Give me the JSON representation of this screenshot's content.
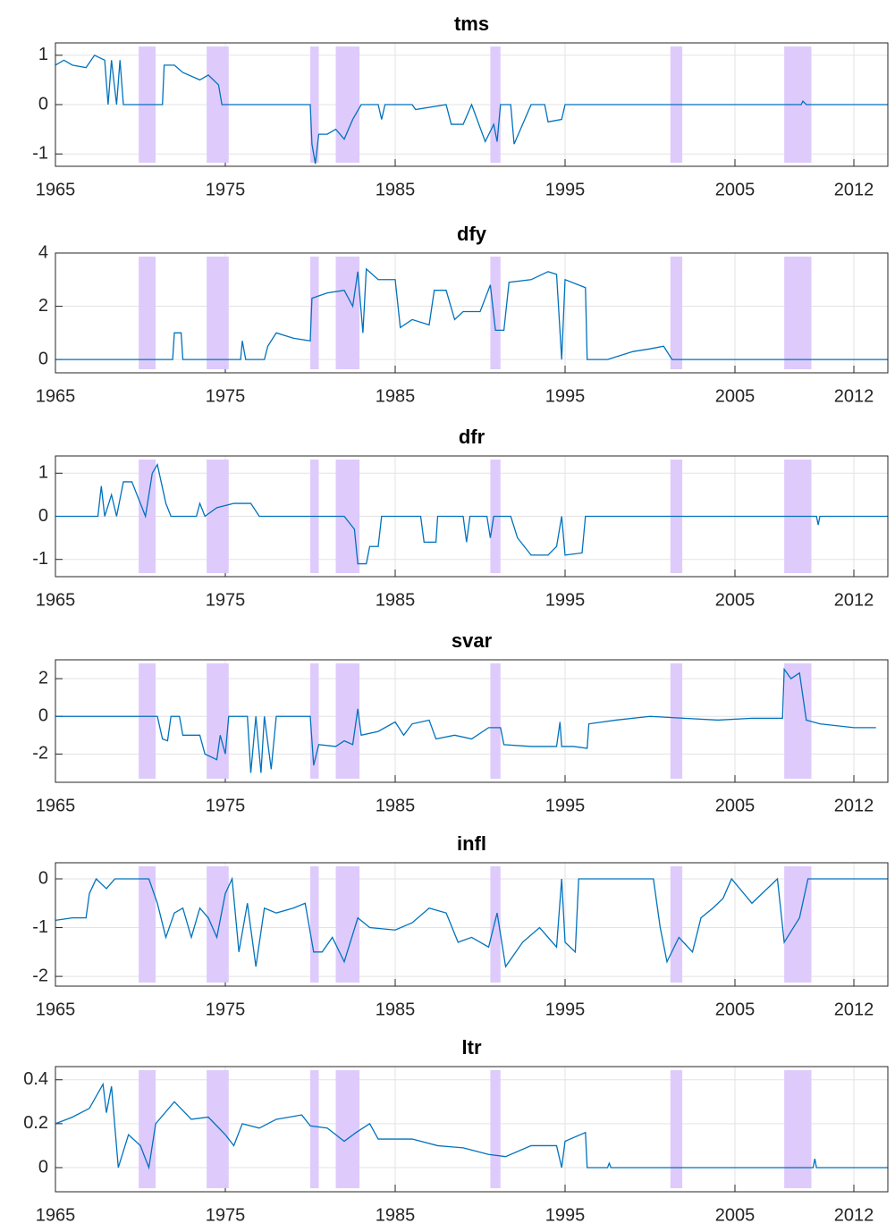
{
  "chart_data": [
    {
      "type": "line",
      "title": "tms",
      "color": "#0072bd",
      "shade_color": "#dcc8fc",
      "grid": true,
      "xlim": [
        1965,
        2014
      ],
      "xticks": [
        1965,
        1975,
        1985,
        1995,
        2005,
        2012
      ],
      "ylim": [
        -1.25,
        1.25
      ],
      "yticks": [
        -1,
        0,
        1
      ],
      "shaded_regions": [
        [
          1969.9,
          1970.9
        ],
        [
          1973.9,
          1975.2
        ],
        [
          1980.0,
          1980.5
        ],
        [
          1981.5,
          1982.9
        ],
        [
          1990.6,
          1991.2
        ],
        [
          2001.2,
          2001.9
        ],
        [
          2007.9,
          2009.5
        ]
      ],
      "x": [
        1965,
        1965.5,
        1966,
        1966.8,
        1967.3,
        1967.9,
        1968.1,
        1968.3,
        1968.6,
        1968.8,
        1969,
        1969.4,
        1971.3,
        1971.4,
        1972,
        1972.5,
        1973.5,
        1974,
        1974.6,
        1974.8,
        1980.0,
        1980.1,
        1980.3,
        1980.5,
        1981,
        1981.5,
        1982,
        1982.5,
        1983,
        1984,
        1984.2,
        1984.4,
        1986,
        1986.2,
        1988,
        1988.3,
        1989,
        1989.5,
        1990.3,
        1990.8,
        1991,
        1991.2,
        1991.8,
        1992,
        1992.5,
        1993,
        1993.8,
        1994,
        1994.8,
        1995,
        2008.9,
        2009,
        2009.2,
        2014
      ],
      "values": [
        0.8,
        0.9,
        0.8,
        0.75,
        1.0,
        0.9,
        0,
        0.9,
        0,
        0.9,
        0,
        0,
        0,
        0.8,
        0.8,
        0.65,
        0.5,
        0.6,
        0.4,
        0,
        0,
        -0.8,
        -1.2,
        -0.6,
        -0.6,
        -0.5,
        -0.7,
        -0.3,
        0,
        0,
        -0.3,
        0,
        0,
        -0.1,
        0,
        -0.4,
        -0.4,
        0,
        -0.75,
        -0.4,
        -0.75,
        0,
        0,
        -0.8,
        -0.4,
        0,
        0,
        -0.35,
        -0.3,
        0,
        0,
        0.07,
        0,
        0
      ]
    },
    {
      "type": "line",
      "title": "dfy",
      "color": "#0072bd",
      "shade_color": "#dcc8fc",
      "grid": true,
      "xlim": [
        1965,
        2014
      ],
      "xticks": [
        1965,
        1975,
        1985,
        1995,
        2005,
        2012
      ],
      "ylim": [
        -0.5,
        4
      ],
      "yticks": [
        0,
        2,
        4
      ],
      "shaded_regions": [
        [
          1969.9,
          1970.9
        ],
        [
          1973.9,
          1975.2
        ],
        [
          1980.0,
          1980.5
        ],
        [
          1981.5,
          1982.9
        ],
        [
          1990.6,
          1991.2
        ],
        [
          2001.2,
          2001.9
        ],
        [
          2007.9,
          2009.5
        ]
      ],
      "x": [
        1965,
        1971.9,
        1972,
        1972.4,
        1972.5,
        1975.9,
        1976,
        1976.2,
        1977.3,
        1977.5,
        1978,
        1979,
        1980,
        1980.1,
        1981,
        1982,
        1982.5,
        1982.8,
        1983.1,
        1983.3,
        1984,
        1985,
        1985.3,
        1986,
        1987,
        1987.3,
        1988,
        1988.5,
        1989,
        1990,
        1990.6,
        1990.9,
        1991.4,
        1991.7,
        1993,
        1994,
        1994.5,
        1994.8,
        1995,
        1996.2,
        1996.3,
        1997.5,
        1998,
        1999,
        2000,
        2000.8,
        2001.3,
        2014
      ],
      "values": [
        0,
        0,
        1,
        1,
        0,
        0,
        0.7,
        0,
        0,
        0.5,
        1,
        0.8,
        0.7,
        2.3,
        2.5,
        2.6,
        2.0,
        3.3,
        1.0,
        3.4,
        3.0,
        3.0,
        1.2,
        1.5,
        1.3,
        2.6,
        2.6,
        1.5,
        1.8,
        1.8,
        2.8,
        1.1,
        1.1,
        2.9,
        3.0,
        3.3,
        3.2,
        0,
        3.0,
        2.7,
        0,
        0,
        0.1,
        0.3,
        0.4,
        0.5,
        0,
        0
      ]
    },
    {
      "type": "line",
      "title": "dfr",
      "color": "#0072bd",
      "shade_color": "#dcc8fc",
      "grid": true,
      "xlim": [
        1965,
        2014
      ],
      "xticks": [
        1965,
        1975,
        1985,
        1995,
        2005,
        2012
      ],
      "ylim": [
        -1.4,
        1.4
      ],
      "yticks": [
        -1,
        0,
        1
      ],
      "shaded_regions": [
        [
          1969.9,
          1970.9
        ],
        [
          1973.9,
          1975.2
        ],
        [
          1980.0,
          1980.5
        ],
        [
          1981.5,
          1982.9
        ],
        [
          1990.6,
          1991.2
        ],
        [
          2001.2,
          2001.9
        ],
        [
          2007.9,
          2009.5
        ]
      ],
      "x": [
        1965,
        1967.5,
        1967.7,
        1967.9,
        1968.3,
        1968.6,
        1969,
        1969.5,
        1970,
        1970.3,
        1970.7,
        1971,
        1971.5,
        1971.8,
        1973.3,
        1973.5,
        1973.8,
        1974.5,
        1975.5,
        1976.5,
        1977,
        1982,
        1982.6,
        1982.8,
        1983.3,
        1983.5,
        1984,
        1984.2,
        1986.5,
        1986.7,
        1987.4,
        1987.5,
        1989,
        1989.2,
        1989.4,
        1990.4,
        1990.6,
        1990.8,
        1991.8,
        1992.2,
        1993,
        1994,
        1994.5,
        1994.8,
        1995,
        1996,
        1996.2,
        2009.8,
        2009.9,
        2010,
        2014
      ],
      "values": [
        0,
        0,
        0.7,
        0,
        0.5,
        0,
        0.8,
        0.8,
        0.3,
        0,
        1.0,
        1.2,
        0.3,
        0,
        0,
        0.3,
        0,
        0.2,
        0.3,
        0.3,
        0,
        0,
        -0.3,
        -1.1,
        -1.1,
        -0.7,
        -0.7,
        0,
        0,
        -0.6,
        -0.6,
        0,
        0,
        -0.6,
        0,
        0,
        -0.5,
        0,
        0,
        -0.5,
        -0.9,
        -0.9,
        -0.7,
        0,
        -0.9,
        -0.85,
        0,
        0,
        -0.2,
        0,
        0
      ]
    },
    {
      "type": "line",
      "title": "svar",
      "color": "#0072bd",
      "shade_color": "#dcc8fc",
      "grid": true,
      "xlim": [
        1965,
        2014
      ],
      "xticks": [
        1965,
        1975,
        1985,
        1995,
        2005,
        2012
      ],
      "ylim": [
        -3.5,
        3
      ],
      "yticks": [
        -2,
        0,
        2
      ],
      "shaded_regions": [
        [
          1969.9,
          1970.9
        ],
        [
          1973.9,
          1975.2
        ],
        [
          1980.0,
          1980.5
        ],
        [
          1981.5,
          1982.9
        ],
        [
          1990.6,
          1991.2
        ],
        [
          2001.2,
          2001.9
        ],
        [
          2007.9,
          2009.5
        ]
      ],
      "x": [
        1965,
        1971,
        1971.3,
        1971.6,
        1971.8,
        1972.3,
        1972.5,
        1973.5,
        1973.8,
        1974.5,
        1974.7,
        1975,
        1975.2,
        1976.3,
        1976.5,
        1976.8,
        1977.1,
        1977.3,
        1977.7,
        1978,
        1980,
        1980.2,
        1980.5,
        1981.5,
        1982,
        1982.5,
        1982.8,
        1983,
        1984,
        1985,
        1985.5,
        1986,
        1987,
        1987.4,
        1988.5,
        1989.5,
        1990.5,
        1991.2,
        1991.4,
        1993,
        1994.5,
        1994.7,
        1994.8,
        1995.5,
        1996.3,
        1996.4,
        1998,
        2000,
        2002,
        2004,
        2006,
        2007.8,
        2007.9,
        2008.3,
        2008.8,
        2009.2,
        2010,
        2012,
        2013.3
      ],
      "values": [
        0,
        0,
        -1.2,
        -1.3,
        0,
        0,
        -1.0,
        -1.0,
        -2.0,
        -2.3,
        -1.0,
        -2.0,
        0,
        0,
        -3.0,
        0,
        -3.0,
        0,
        -2.8,
        0,
        0,
        -2.6,
        -1.5,
        -1.6,
        -1.3,
        -1.5,
        0.4,
        -1.0,
        -0.8,
        -0.3,
        -1.0,
        -0.4,
        -0.2,
        -1.2,
        -1.0,
        -1.2,
        -0.6,
        -0.6,
        -1.5,
        -1.6,
        -1.6,
        -0.3,
        -1.6,
        -1.6,
        -1.7,
        -0.4,
        -0.2,
        0,
        -0.1,
        -0.2,
        -0.1,
        -0.1,
        2.5,
        2.0,
        2.3,
        -0.2,
        -0.4,
        -0.6,
        -0.6
      ]
    },
    {
      "type": "line",
      "title": "infl",
      "color": "#0072bd",
      "shade_color": "#dcc8fc",
      "grid": true,
      "xlim": [
        1965,
        2014
      ],
      "xticks": [
        1965,
        1975,
        1985,
        1995,
        2005,
        2012
      ],
      "ylim": [
        -2.2,
        0.33
      ],
      "yticks": [
        -2,
        -1,
        0
      ],
      "shaded_regions": [
        [
          1969.9,
          1970.9
        ],
        [
          1973.9,
          1975.2
        ],
        [
          1980.0,
          1980.5
        ],
        [
          1981.5,
          1982.9
        ],
        [
          1990.6,
          1991.2
        ],
        [
          2001.2,
          2001.9
        ],
        [
          2007.9,
          2009.5
        ]
      ],
      "x": [
        1965,
        1966,
        1966.8,
        1967,
        1967.4,
        1968,
        1968.5,
        1970.5,
        1971,
        1971.5,
        1972,
        1972.5,
        1973,
        1973.5,
        1974,
        1974.5,
        1975,
        1975.4,
        1975.8,
        1976.3,
        1976.8,
        1977.3,
        1978,
        1979,
        1979.7,
        1980.2,
        1980.7,
        1981.3,
        1982,
        1982.8,
        1983.5,
        1985,
        1986,
        1987,
        1988,
        1988.7,
        1989.5,
        1990.5,
        1991,
        1991.5,
        1992.5,
        1993.5,
        1994.5,
        1994.8,
        1995,
        1995.6,
        1995.8,
        2000.2,
        2000.6,
        2001,
        2001.7,
        2002.5,
        2003,
        2003.7,
        2004.3,
        2004.8,
        2006,
        2007.5,
        2007.9,
        2008.8,
        2009.3,
        2014
      ],
      "values": [
        -0.85,
        -0.8,
        -0.8,
        -0.3,
        0,
        -0.2,
        0,
        0,
        -0.5,
        -1.2,
        -0.7,
        -0.6,
        -1.2,
        -0.6,
        -0.8,
        -1.2,
        -0.3,
        0,
        -1.5,
        -0.5,
        -1.8,
        -0.6,
        -0.7,
        -0.6,
        -0.5,
        -1.5,
        -1.5,
        -1.2,
        -1.7,
        -0.8,
        -1.0,
        -1.05,
        -0.9,
        -0.6,
        -0.7,
        -1.3,
        -1.2,
        -1.4,
        -0.7,
        -1.8,
        -1.3,
        -1.0,
        -1.4,
        0,
        -1.3,
        -1.5,
        0,
        0,
        -1.0,
        -1.7,
        -1.2,
        -1.5,
        -0.8,
        -0.6,
        -0.4,
        0,
        -0.5,
        0,
        -1.3,
        -0.8,
        0,
        0
      ]
    },
    {
      "type": "line",
      "title": "ltr",
      "color": "#0072bd",
      "shade_color": "#dcc8fc",
      "grid": true,
      "xlim": [
        1965,
        2014
      ],
      "xticks": [
        1965,
        1975,
        1985,
        1995,
        2005,
        2012
      ],
      "ylim": [
        -0.11,
        0.46
      ],
      "yticks": [
        0,
        0.2,
        0.4
      ],
      "shaded_regions": [
        [
          1969.9,
          1970.9
        ],
        [
          1973.9,
          1975.2
        ],
        [
          1980.0,
          1980.5
        ],
        [
          1981.5,
          1982.9
        ],
        [
          1990.6,
          1991.2
        ],
        [
          2001.2,
          2001.9
        ],
        [
          2007.9,
          2009.5
        ]
      ],
      "x": [
        1965,
        1966,
        1967,
        1967.8,
        1968,
        1968.3,
        1968.7,
        1969.3,
        1970,
        1970.5,
        1970.9,
        1972,
        1973,
        1974,
        1975,
        1975.5,
        1976,
        1977,
        1978,
        1979.5,
        1980,
        1981,
        1982,
        1982.7,
        1983.5,
        1984,
        1986,
        1987.5,
        1989,
        1990.5,
        1991.5,
        1993,
        1994.5,
        1994.8,
        1995,
        1996.2,
        1996.3,
        1997.5,
        1997.6,
        1997.7,
        2009.6,
        2009.7,
        2009.8,
        2014
      ],
      "values": [
        0.2,
        0.23,
        0.27,
        0.38,
        0.25,
        0.37,
        0,
        0.15,
        0.1,
        0,
        0.2,
        0.3,
        0.22,
        0.23,
        0.15,
        0.1,
        0.2,
        0.18,
        0.22,
        0.24,
        0.19,
        0.18,
        0.12,
        0.16,
        0.2,
        0.13,
        0.13,
        0.1,
        0.09,
        0.06,
        0.05,
        0.1,
        0.1,
        0,
        0.12,
        0.16,
        0,
        0,
        0.02,
        0,
        0,
        0.04,
        0,
        0
      ]
    }
  ]
}
